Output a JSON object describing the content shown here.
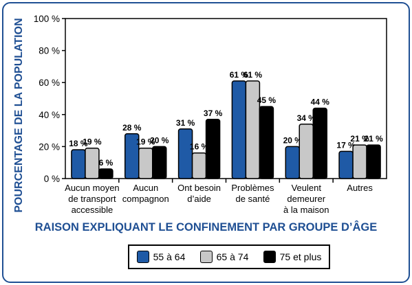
{
  "chart_data": {
    "type": "bar",
    "ylabel": "POURCENTAGE DE LA POPULATION",
    "xlabel": "RAISON EXPLIQUANT LE CONFINEMENT PAR GROUPE D’ÂGE",
    "ylim": [
      0,
      100
    ],
    "yticks": [
      "0 %",
      "20 %",
      "40 %",
      "60 %",
      "80 %",
      "100 %"
    ],
    "categories": [
      [
        "Aucun moyen",
        "de transport",
        "accessible"
      ],
      [
        "Aucun",
        "compagnon"
      ],
      [
        "Ont besoin",
        "d’aide"
      ],
      [
        "Problèmes",
        "de santé"
      ],
      [
        "Veulent",
        "demeurer",
        "à la maison"
      ],
      [
        "Autres"
      ]
    ],
    "series": [
      {
        "name": "55 à 64",
        "color": "#1f5aa6",
        "values": [
          18,
          28,
          31,
          61,
          20,
          17
        ],
        "labels": [
          "18 %",
          "28 %",
          "31 %",
          "61 %",
          "20 %",
          "17 %"
        ]
      },
      {
        "name": "65 à 74",
        "color": "#c8c8c8",
        "values": [
          19,
          19,
          16,
          61,
          34,
          21
        ],
        "labels": [
          "19 %",
          "19 %",
          "16 %",
          "61 %",
          "34 %",
          "21 %"
        ]
      },
      {
        "name": "75 et plus",
        "color": "#000000",
        "values": [
          6,
          20,
          37,
          45,
          44,
          21
        ],
        "labels": [
          "6 %",
          "20 %",
          "37 %",
          "45 %",
          "44 %",
          "21 %"
        ]
      }
    ],
    "grid": false,
    "legend": "bottom"
  }
}
